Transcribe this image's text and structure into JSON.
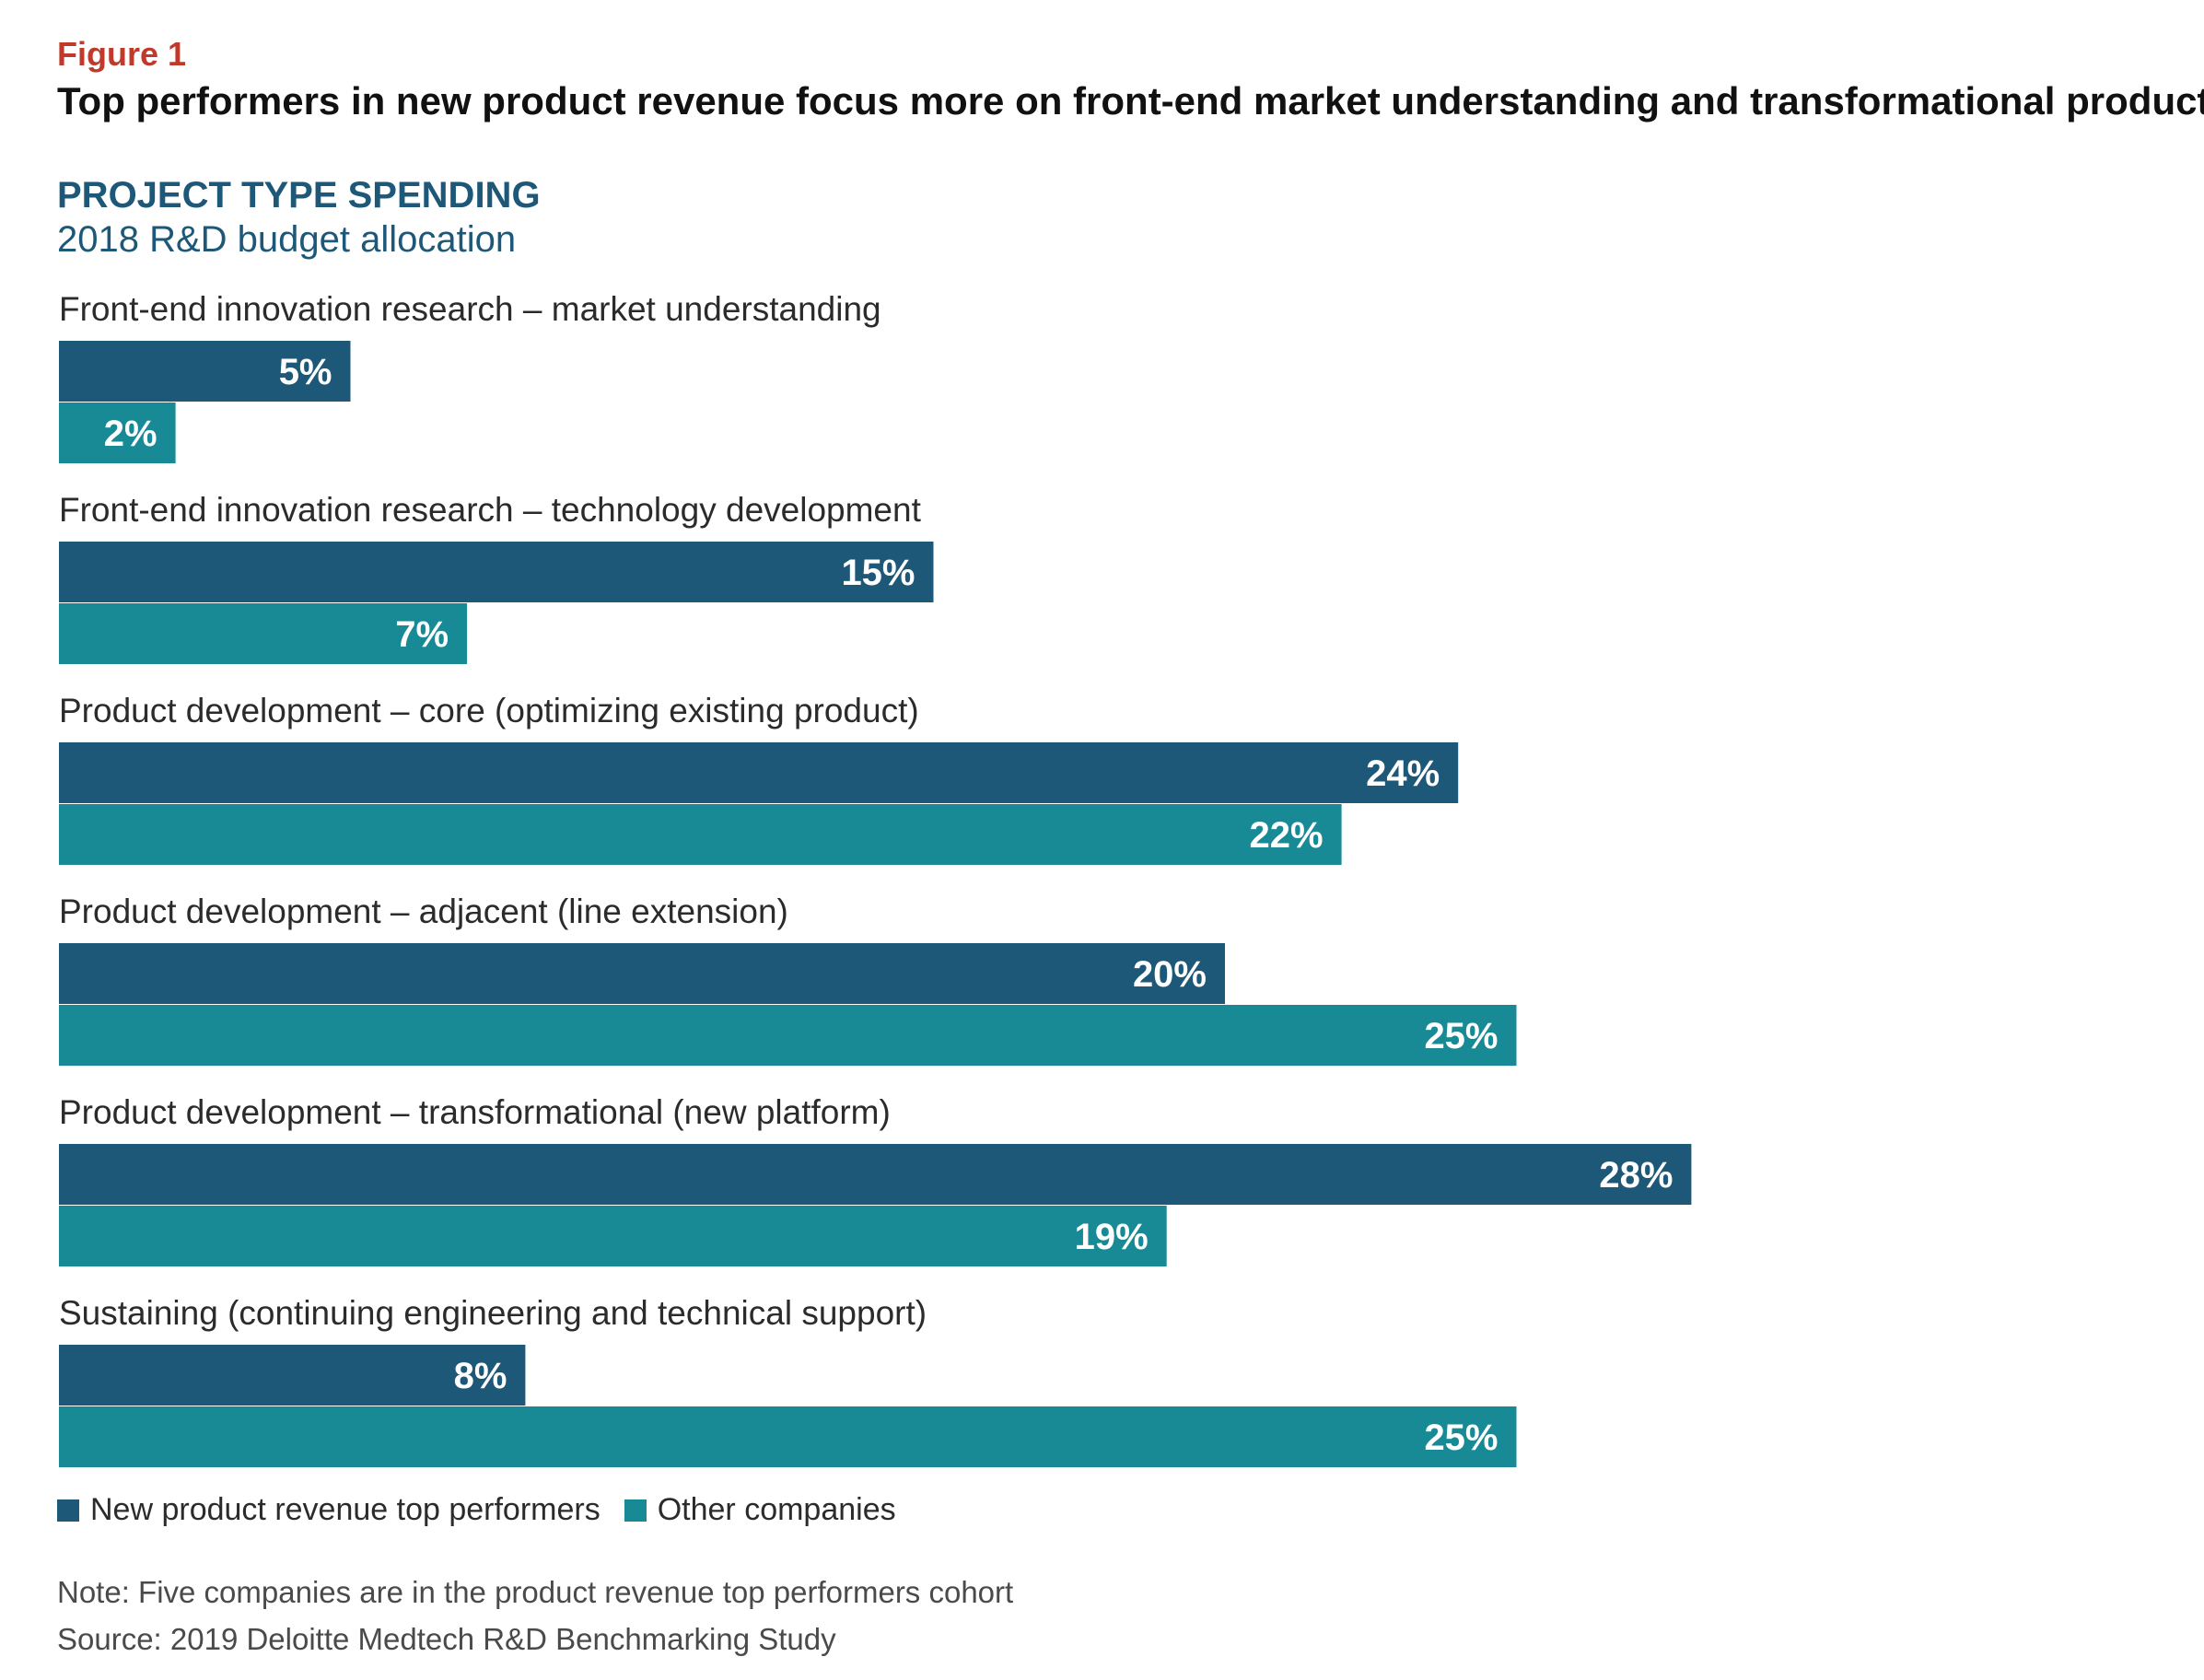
{
  "figure_label": "Figure 1",
  "figure_title": "Top performers in new product revenue focus more on front-end market understanding and transformational products",
  "chart_data": {
    "type": "bar",
    "orientation": "horizontal",
    "title": "PROJECT TYPE SPENDING",
    "subtitle": "2018 R&D budget allocation",
    "categories": [
      "Front-end innovation research – market understanding",
      "Front-end innovation research – technology development",
      "Product development – core (optimizing existing product)",
      "Product development – adjacent (line extension)",
      "Product development – transformational (new platform)",
      "Sustaining (continuing engineering and technical support)"
    ],
    "series": [
      {
        "name": "New product revenue top performers",
        "values": [
          5,
          15,
          24,
          20,
          28,
          8
        ],
        "labels": [
          "5%",
          "15%",
          "24%",
          "20%",
          "28%",
          "8%"
        ],
        "color": "#1e5878"
      },
      {
        "name": "Other companies",
        "values": [
          2,
          7,
          22,
          25,
          19,
          25
        ],
        "labels": [
          "2%",
          "7%",
          "22%",
          "25%",
          "19%",
          "25%"
        ],
        "color": "#178a96"
      }
    ],
    "unit": "%",
    "xlim": [
      0,
      28
    ],
    "grid": false,
    "legend_position": "bottom-left"
  },
  "note": "Note: Five companies are in the product revenue top performers cohort",
  "source": "Source: 2019 Deloitte Medtech R&D Benchmarking Study"
}
